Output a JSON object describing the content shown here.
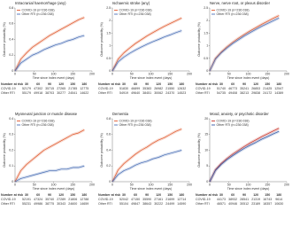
{
  "chart_data": [
    {
      "type": "line",
      "title": "Intracranial haemorrhage (any)",
      "x_label": "Time since index event (days)",
      "y_label": "Outcome probability (%)",
      "x": [
        0,
        15,
        30,
        45,
        60,
        75,
        90,
        105,
        120,
        135,
        150,
        165,
        180
      ],
      "series": [
        {
          "name": "COVID-19 (n=236 038)",
          "color": "#e0592e",
          "values": [
            0,
            0.15,
            0.23,
            0.3,
            0.35,
            0.4,
            0.45,
            0.49,
            0.53,
            0.57,
            0.61,
            0.65,
            0.68
          ]
        },
        {
          "name": "Other RTI (n=236 038)",
          "color": "#4a6fb5",
          "values": [
            0,
            0.1,
            0.15,
            0.2,
            0.23,
            0.27,
            0.3,
            0.33,
            0.35,
            0.38,
            0.4,
            0.43,
            0.45
          ]
        }
      ],
      "xlim": [
        0,
        200
      ],
      "xticks": [
        0,
        50,
        100,
        150,
        200
      ],
      "ylim": [
        0,
        0.8
      ],
      "yticks": [
        0,
        0.2,
        0.4,
        0.6,
        0.8
      ],
      "risk_table": {
        "header": "Number at risk",
        "times": [
          30,
          60,
          90,
          120,
          150,
          180
        ],
        "rows": [
          {
            "name": "COVID-19",
            "values": [
              52179,
              47302,
              35715,
              27265,
              21785,
              12775
            ]
          },
          {
            "name": "Other RTI",
            "values": [
              55179,
              49918,
              38703,
              30277,
              24541,
              14622
            ]
          }
        ]
      }
    },
    {
      "type": "line",
      "title": "Ischaemic stroke (any)",
      "x_label": "Time since index event (days)",
      "y_label": "Outcome probability (%)",
      "x": [
        0,
        15,
        30,
        45,
        60,
        75,
        90,
        105,
        120,
        135,
        150,
        165,
        180
      ],
      "series": [
        {
          "name": "COVID-19 (n=236 038)",
          "color": "#e0592e",
          "values": [
            0,
            0.47,
            0.72,
            0.91,
            1.09,
            1.24,
            1.39,
            1.52,
            1.65,
            1.77,
            1.88,
            1.99,
            2.1
          ]
        },
        {
          "name": "Other RTI (n=236 038)",
          "color": "#4a6fb5",
          "values": [
            0,
            0.36,
            0.55,
            0.7,
            0.83,
            0.95,
            1.06,
            1.16,
            1.25,
            1.35,
            1.43,
            1.52,
            1.6
          ]
        }
      ],
      "xlim": [
        0,
        200
      ],
      "xticks": [
        0,
        50,
        100,
        150,
        200
      ],
      "ylim": [
        0,
        2.5
      ],
      "yticks": [
        0,
        0.5,
        1,
        1.5,
        2,
        2.5
      ],
      "risk_table": {
        "header": "Number at risk",
        "times": [
          30,
          60,
          90,
          120,
          150,
          180
        ],
        "rows": [
          {
            "name": "COVID-19",
            "values": [
              51830,
              46899,
              35383,
              26982,
              21550,
              12632
            ]
          },
          {
            "name": "Other RTI",
            "values": [
              54919,
              49640,
              38451,
              30062,
              24370,
              14523
            ]
          }
        ]
      }
    },
    {
      "type": "line",
      "title": "Nerve, nerve root, or plexus disorder",
      "x_label": "Time since index event (days)",
      "y_label": "Outcome probability (%)",
      "x": [
        0,
        15,
        30,
        45,
        60,
        75,
        90,
        105,
        120,
        135,
        150,
        165,
        180
      ],
      "series": [
        {
          "name": "COVID-19 (n=236 038)",
          "color": "#e0592e",
          "values": [
            0,
            0.5,
            0.75,
            0.96,
            1.14,
            1.3,
            1.45,
            1.59,
            1.72,
            1.85,
            1.97,
            2.09,
            2.2
          ]
        },
        {
          "name": "Other RTI (n=236 038)",
          "color": "#4a6fb5",
          "values": [
            0,
            0.47,
            0.72,
            0.91,
            1.09,
            1.24,
            1.39,
            1.52,
            1.65,
            1.77,
            1.88,
            1.99,
            2.1
          ]
        }
      ],
      "xlim": [
        0,
        200
      ],
      "xticks": [
        0,
        50,
        100,
        150,
        200
      ],
      "ylim": [
        0,
        2.5
      ],
      "yticks": [
        0,
        0.5,
        1,
        1.5,
        2,
        2.5
      ],
      "risk_table": {
        "header": "Number at risk",
        "times": [
          30,
          60,
          90,
          120,
          150,
          180
        ],
        "rows": [
          {
            "name": "COVID-19",
            "values": [
              51740,
              46773,
              35241,
              26853,
              21425,
              12547
            ]
          },
          {
            "name": "Other RTI",
            "values": [
              54735,
              49408,
              38213,
              29838,
              24172,
              14389
            ]
          }
        ]
      }
    },
    {
      "type": "line",
      "title": "Myoneural junction or muscle disease",
      "x_label": "Time since index event (days)",
      "y_label": "Outcome probability (%)",
      "x": [
        0,
        15,
        30,
        45,
        60,
        75,
        90,
        105,
        120,
        135,
        150,
        165,
        180
      ],
      "series": [
        {
          "name": "COVID-19 (n=236 038)",
          "color": "#e0592e",
          "values": [
            0,
            0.07,
            0.11,
            0.14,
            0.17,
            0.2,
            0.22,
            0.24,
            0.26,
            0.28,
            0.3,
            0.31,
            0.33
          ]
        },
        {
          "name": "Other RTI (n=236 038)",
          "color": "#4a6fb5",
          "values": [
            0,
            0.02,
            0.03,
            0.04,
            0.05,
            0.06,
            0.07,
            0.07,
            0.08,
            0.08,
            0.09,
            0.09,
            0.1
          ]
        }
      ],
      "xlim": [
        0,
        200
      ],
      "xticks": [
        0,
        50,
        100,
        150,
        200
      ],
      "ylim": [
        0,
        0.4
      ],
      "yticks": [
        0,
        0.1,
        0.2,
        0.3,
        0.4
      ],
      "risk_table": {
        "header": "Number at risk",
        "times": [
          30,
          60,
          90,
          120,
          150,
          180
        ],
        "rows": [
          {
            "name": "COVID-19",
            "values": [
              52191,
              47324,
              35740,
              27289,
              21806,
              12788
            ]
          },
          {
            "name": "Other RTI",
            "values": [
              55231,
              49986,
              38775,
              30343,
              24600,
              14659
            ]
          }
        ]
      }
    },
    {
      "type": "line",
      "title": "Dementia",
      "x_label": "Time since index event (days)",
      "y_label": "Outcome probability (%)",
      "x": [
        0,
        15,
        30,
        45,
        60,
        75,
        90,
        105,
        120,
        135,
        150,
        165,
        180
      ],
      "series": [
        {
          "name": "COVID-19 (n=236 038)",
          "color": "#e0592e",
          "values": [
            0,
            0.15,
            0.23,
            0.29,
            0.35,
            0.4,
            0.44,
            0.49,
            0.53,
            0.56,
            0.6,
            0.64,
            0.67
          ]
        },
        {
          "name": "Other RTI (n=236 038)",
          "color": "#4a6fb5",
          "values": [
            0,
            0.09,
            0.14,
            0.17,
            0.21,
            0.24,
            0.26,
            0.29,
            0.31,
            0.34,
            0.36,
            0.38,
            0.4
          ]
        }
      ],
      "xlim": [
        0,
        200
      ],
      "xticks": [
        0,
        50,
        100,
        150,
        200
      ],
      "ylim": [
        0,
        0.8
      ],
      "yticks": [
        0,
        0.2,
        0.4,
        0.6,
        0.8
      ],
      "risk_table": {
        "header": "Number at risk",
        "times": [
          30,
          60,
          90,
          120,
          150,
          180
        ],
        "rows": [
          {
            "name": "COVID-19",
            "values": [
              52042,
              47150,
              35590,
              27161,
              21699,
              12714
            ]
          },
          {
            "name": "Other RTI",
            "values": [
              55104,
              49847,
              38643,
              30222,
              24499,
              14590
            ]
          }
        ]
      }
    },
    {
      "type": "line",
      "title": "Mood, anxiety, or psychotic disorder",
      "x_label": "Time since index event (days)",
      "y_label": "Outcome probability (%)",
      "x": [
        0,
        15,
        30,
        45,
        60,
        75,
        90,
        105,
        120,
        135,
        150,
        165,
        180
      ],
      "series": [
        {
          "name": "COVID-19 (n=236 038)",
          "color": "#c8342a",
          "values": [
            0,
            3.8,
            5.8,
            7.4,
            8.8,
            10,
            11.2,
            12.3,
            13.3,
            14.3,
            15.2,
            16.1,
            17
          ]
        },
        {
          "name": "Other RTI (n=236 038)",
          "color": "#2f55a4",
          "values": [
            0,
            3.6,
            5.5,
            7,
            8.3,
            9.5,
            10.6,
            11.6,
            12.5,
            13.5,
            14.3,
            15.2,
            16
          ]
        }
      ],
      "xlim": [
        0,
        200
      ],
      "xticks": [
        0,
        50,
        100,
        150,
        200
      ],
      "ylim": [
        0,
        20
      ],
      "yticks": [
        0,
        5,
        10,
        15,
        20
      ],
      "risk_table": {
        "header": "Number at risk",
        "times": [
          30,
          60,
          90,
          120,
          150,
          180
        ],
        "rows": [
          {
            "name": "COVID-19",
            "values": [
              44173,
              38932,
              28541,
              21319,
              16743,
              9614
            ]
          },
          {
            "name": "Other RTI",
            "values": [
              46571,
              40946,
              30512,
              23189,
              18357,
              10630
            ]
          }
        ]
      }
    }
  ]
}
